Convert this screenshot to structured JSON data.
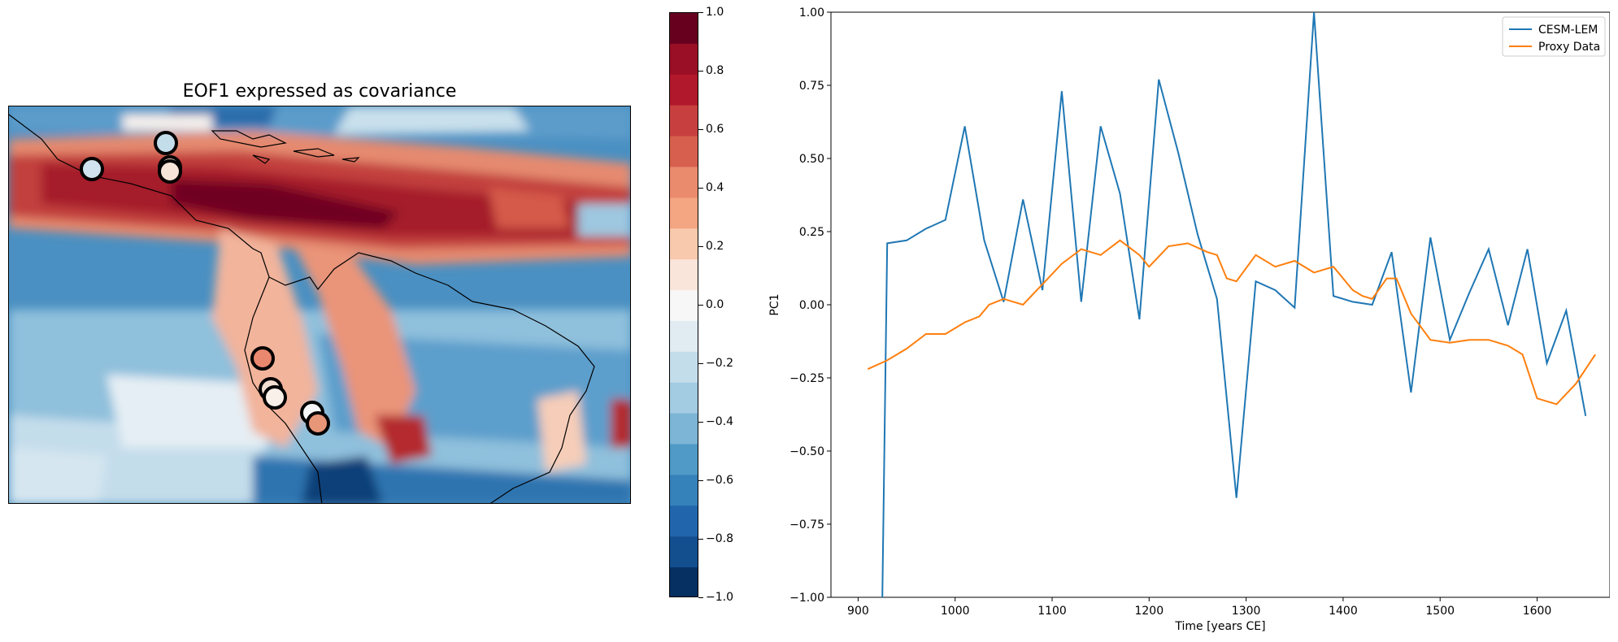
{
  "map": {
    "title": "EOF1 expressed as covariance",
    "colorbar": {
      "ticks": [
        "1.0",
        "0.8",
        "0.6",
        "0.4",
        "0.2",
        "0.0",
        "−0.2",
        "−0.4",
        "−0.6",
        "−0.8",
        "−1.0"
      ],
      "levels": [
        "#67001f",
        "#9a0f26",
        "#b2182b",
        "#c7403f",
        "#d6604d",
        "#ea8b6e",
        "#f4a582",
        "#f9c9ad",
        "#fae5da",
        "#f7f7f7",
        "#e0ebf2",
        "#c4ddeb",
        "#a3cbe2",
        "#7cb5d6",
        "#4f9ac6",
        "#3581b9",
        "#2166ac",
        "#134f8f",
        "#053061"
      ]
    },
    "proxy_sites": [
      {
        "color": "#c4ddeb"
      },
      {
        "color": "#f4d6c8"
      },
      {
        "color": "#d0e3ef"
      },
      {
        "color": "#f7e4d8"
      },
      {
        "color": "#e9886e"
      },
      {
        "color": "#f3ded2"
      },
      {
        "color": "#faf0ea"
      },
      {
        "color": "#f7f7f7"
      },
      {
        "color": "#e79678"
      }
    ]
  },
  "chart_data": {
    "type": "line",
    "title": "",
    "xlabel": "Time [years CE]",
    "ylabel": "PC1",
    "xlim": [
      872,
      1675
    ],
    "ylim": [
      -1.0,
      1.0
    ],
    "xticks": [
      "900",
      "1000",
      "1100",
      "1200",
      "1300",
      "1400",
      "1500",
      "1600"
    ],
    "yticks": [
      "1.00",
      "0.75",
      "0.50",
      "0.25",
      "0.00",
      "−0.25",
      "−0.50",
      "−0.75",
      "−1.00"
    ],
    "legend": "top-right",
    "series": [
      {
        "name": "CESM-LEM",
        "color": "#1f77b4",
        "x": [
          925,
          930,
          950,
          970,
          990,
          1010,
          1030,
          1050,
          1070,
          1090,
          1110,
          1130,
          1150,
          1170,
          1190,
          1210,
          1230,
          1250,
          1270,
          1290,
          1310,
          1330,
          1350,
          1370,
          1390,
          1410,
          1430,
          1450,
          1470,
          1490,
          1510,
          1530,
          1550,
          1570,
          1590,
          1610,
          1630,
          1650
        ],
        "y": [
          -1.0,
          0.21,
          0.22,
          0.26,
          0.29,
          0.61,
          0.22,
          0.01,
          0.36,
          0.05,
          0.73,
          0.01,
          0.61,
          0.38,
          -0.05,
          0.77,
          0.52,
          0.24,
          0.02,
          -0.66,
          0.08,
          0.05,
          -0.01,
          1.0,
          0.03,
          0.01,
          0.0,
          0.18,
          -0.3,
          0.23,
          -0.12,
          0.04,
          0.19,
          -0.07,
          0.19,
          -0.2,
          -0.02,
          -0.38
        ]
      },
      {
        "name": "Proxy Data",
        "color": "#ff7f0e",
        "x": [
          910,
          930,
          950,
          970,
          990,
          1010,
          1025,
          1035,
          1050,
          1070,
          1090,
          1110,
          1130,
          1150,
          1170,
          1190,
          1200,
          1220,
          1240,
          1260,
          1270,
          1280,
          1290,
          1310,
          1330,
          1350,
          1370,
          1390,
          1410,
          1420,
          1430,
          1445,
          1455,
          1470,
          1490,
          1510,
          1530,
          1550,
          1570,
          1585,
          1600,
          1620,
          1640,
          1660
        ],
        "y": [
          -0.22,
          -0.19,
          -0.15,
          -0.1,
          -0.1,
          -0.06,
          -0.04,
          0.0,
          0.02,
          0.0,
          0.07,
          0.14,
          0.19,
          0.17,
          0.22,
          0.17,
          0.13,
          0.2,
          0.21,
          0.18,
          0.17,
          0.09,
          0.08,
          0.17,
          0.13,
          0.15,
          0.11,
          0.13,
          0.05,
          0.03,
          0.02,
          0.09,
          0.09,
          -0.03,
          -0.12,
          -0.13,
          -0.12,
          -0.12,
          -0.14,
          -0.17,
          -0.32,
          -0.34,
          -0.27,
          -0.17
        ]
      }
    ]
  }
}
